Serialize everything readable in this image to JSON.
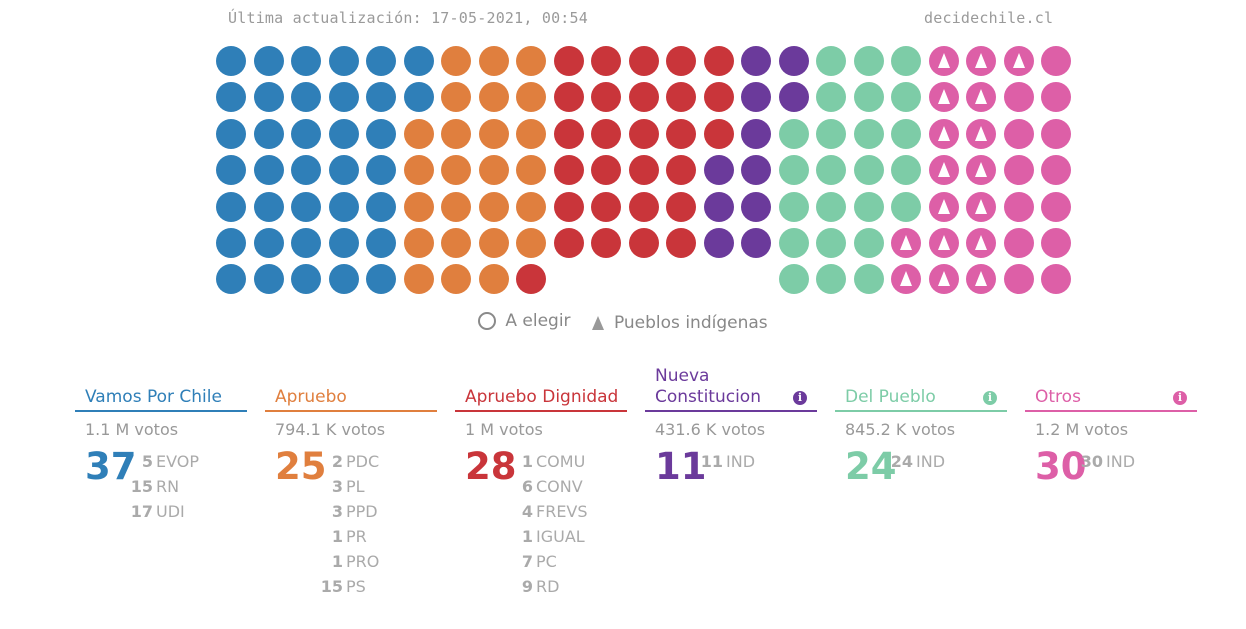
{
  "header": {
    "updated": "Última actualización: 17-05-2021, 00:54",
    "site": "decidechile.cl"
  },
  "colors": {
    "vamos": "#2f7fb8",
    "apruebo": "#e07f3e",
    "dignidad": "#c9353a",
    "nueva": "#6b3a9b",
    "pueblo": "#7dcca7",
    "otros": "#dd5fa7"
  },
  "legend": {
    "to_elect": "A elegir",
    "indigenous": "Pueblos indígenas"
  },
  "seat_grid": {
    "columns": 23,
    "rows": 7,
    "cells": [
      [
        "vamos",
        "vamos",
        "vamos",
        "vamos",
        "vamos",
        "vamos",
        "apruebo",
        "apruebo",
        "apruebo",
        "dignidad",
        "dignidad",
        "dignidad",
        "dignidad",
        "dignidad",
        "nueva",
        "nueva",
        "pueblo",
        "pueblo",
        "pueblo",
        "otros-ind",
        "otros-ind",
        "otros-ind",
        "otros"
      ],
      [
        "vamos",
        "vamos",
        "vamos",
        "vamos",
        "vamos",
        "vamos",
        "apruebo",
        "apruebo",
        "apruebo",
        "dignidad",
        "dignidad",
        "dignidad",
        "dignidad",
        "dignidad",
        "nueva",
        "nueva",
        "pueblo",
        "pueblo",
        "pueblo",
        "otros-ind",
        "otros-ind",
        "otros",
        "otros"
      ],
      [
        "vamos",
        "vamos",
        "vamos",
        "vamos",
        "vamos",
        "apruebo",
        "apruebo",
        "apruebo",
        "apruebo",
        "dignidad",
        "dignidad",
        "dignidad",
        "dignidad",
        "dignidad",
        "nueva",
        "pueblo",
        "pueblo",
        "pueblo",
        "pueblo",
        "otros-ind",
        "otros-ind",
        "otros",
        "otros"
      ],
      [
        "vamos",
        "vamos",
        "vamos",
        "vamos",
        "vamos",
        "apruebo",
        "apruebo",
        "apruebo",
        "apruebo",
        "dignidad",
        "dignidad",
        "dignidad",
        "dignidad",
        "nueva",
        "nueva",
        "pueblo",
        "pueblo",
        "pueblo",
        "pueblo",
        "otros-ind",
        "otros-ind",
        "otros",
        "otros"
      ],
      [
        "vamos",
        "vamos",
        "vamos",
        "vamos",
        "vamos",
        "apruebo",
        "apruebo",
        "apruebo",
        "apruebo",
        "dignidad",
        "dignidad",
        "dignidad",
        "dignidad",
        "nueva",
        "nueva",
        "pueblo",
        "pueblo",
        "pueblo",
        "pueblo",
        "otros-ind",
        "otros-ind",
        "otros",
        "otros"
      ],
      [
        "vamos",
        "vamos",
        "vamos",
        "vamos",
        "vamos",
        "apruebo",
        "apruebo",
        "apruebo",
        "apruebo",
        "dignidad",
        "dignidad",
        "dignidad",
        "dignidad",
        "nueva",
        "nueva",
        "pueblo",
        "pueblo",
        "pueblo",
        "otros-ind",
        "otros-ind",
        "otros-ind",
        "otros",
        "otros"
      ],
      [
        "vamos",
        "vamos",
        "vamos",
        "vamos",
        "vamos",
        "apruebo",
        "apruebo",
        "apruebo",
        "dignidad",
        null,
        null,
        null,
        null,
        null,
        null,
        "pueblo",
        "pueblo",
        "pueblo",
        "otros-ind",
        "otros-ind",
        "otros-ind",
        "otros",
        "otros"
      ]
    ]
  },
  "coalitions": [
    {
      "id": "vamos",
      "name": "Vamos Por Chile",
      "votes": "1.1 M votos",
      "seats": "37",
      "info": false,
      "parties": [
        {
          "n": "5",
          "label": "EVOP"
        },
        {
          "n": "15",
          "label": "RN"
        },
        {
          "n": "17",
          "label": "UDI"
        }
      ]
    },
    {
      "id": "apruebo",
      "name": "Apruebo",
      "votes": "794.1 K votos",
      "seats": "25",
      "info": false,
      "parties": [
        {
          "n": "2",
          "label": "PDC"
        },
        {
          "n": "3",
          "label": "PL"
        },
        {
          "n": "3",
          "label": "PPD"
        },
        {
          "n": "1",
          "label": "PR"
        },
        {
          "n": "1",
          "label": "PRO"
        },
        {
          "n": "15",
          "label": "PS"
        }
      ]
    },
    {
      "id": "dignidad",
      "name": "Apruebo Dignidad",
      "votes": "1 M votos",
      "seats": "28",
      "info": false,
      "parties": [
        {
          "n": "1",
          "label": "COMU"
        },
        {
          "n": "6",
          "label": "CONV"
        },
        {
          "n": "4",
          "label": "FREVS"
        },
        {
          "n": "1",
          "label": "IGUAL"
        },
        {
          "n": "7",
          "label": "PC"
        },
        {
          "n": "9",
          "label": "RD"
        }
      ]
    },
    {
      "id": "nueva",
      "name": "Nueva Constitucion",
      "votes": "431.6 K votos",
      "seats": "11",
      "info": true,
      "parties": [
        {
          "n": "11",
          "label": "IND"
        }
      ]
    },
    {
      "id": "pueblo",
      "name": "Del Pueblo",
      "votes": "845.2 K votos",
      "seats": "24",
      "info": true,
      "parties": [
        {
          "n": "24",
          "label": "IND"
        }
      ]
    },
    {
      "id": "otros",
      "name": "Otros",
      "votes": "1.2 M votos",
      "seats": "30",
      "info": true,
      "parties": [
        {
          "n": "30",
          "label": "IND"
        }
      ]
    }
  ]
}
